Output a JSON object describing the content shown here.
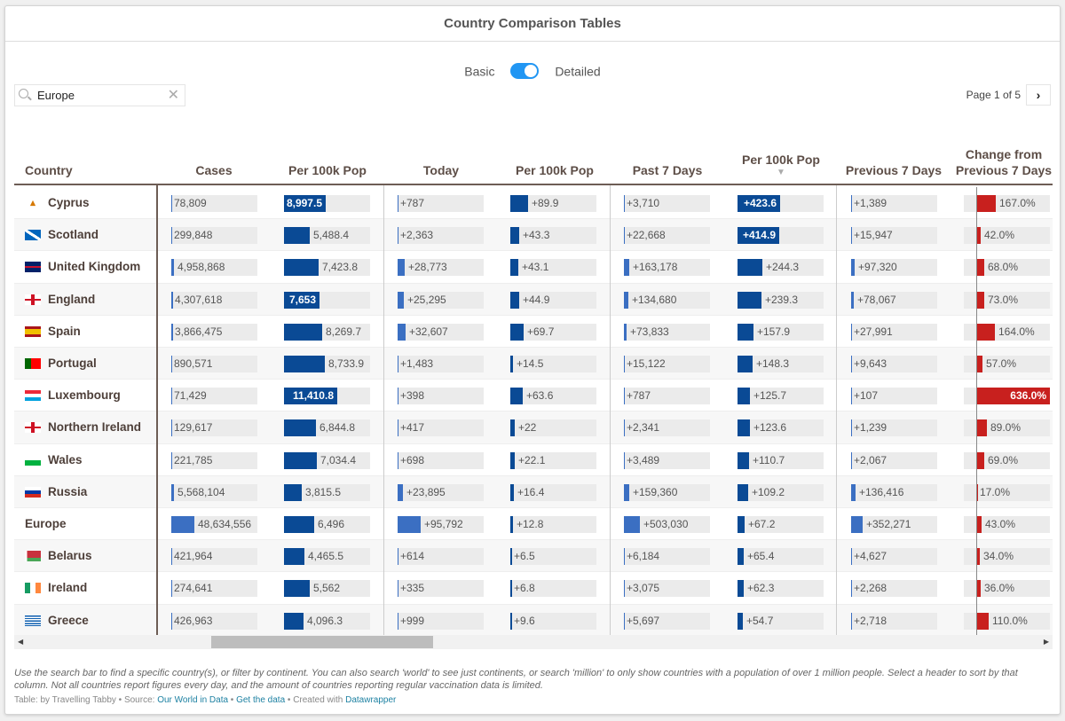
{
  "title": "Country Comparison Tables",
  "toggle": {
    "left": "Basic",
    "right": "Detailed",
    "state": "Detailed"
  },
  "search": {
    "value": "Europe",
    "icon": "search-icon",
    "clear_icon": "close-icon"
  },
  "pager": {
    "label": "Page 1 of 5",
    "next_icon": "chevron-right-icon"
  },
  "columns": [
    "Country",
    "Cases",
    "Per 100k Pop",
    "Today",
    "Per 100k Pop",
    "Past 7 Days",
    "Per 100k Pop",
    "Previous 7 Days",
    "Change from Previous 7 Days"
  ],
  "sort": {
    "column": 6,
    "direction": "descending",
    "icon": "▼"
  },
  "colors": {
    "bar_total": "#3b6fc2",
    "bar_per100k": "#0a4a95",
    "bar_change": "#c8201e",
    "bar_bg": "#ebebeb"
  },
  "rows": [
    {
      "country": "Cyprus",
      "flag": "cyprus",
      "cells": [
        "78,809",
        "8,997.5",
        "+787",
        "+89.9",
        "+3,710",
        "+423.6",
        "+1,389",
        "167.0%"
      ],
      "values": [
        78809,
        8997.5,
        787,
        89.9,
        3710,
        423.6,
        1389,
        167
      ]
    },
    {
      "country": "Scotland",
      "flag": "scotland",
      "cells": [
        "299,848",
        "5,488.4",
        "+2,363",
        "+43.3",
        "+22,668",
        "+414.9",
        "+15,947",
        "42.0%"
      ],
      "values": [
        299848,
        5488.4,
        2363,
        43.3,
        22668,
        414.9,
        15947,
        42
      ]
    },
    {
      "country": "United Kingdom",
      "flag": "uk",
      "cells": [
        "4,958,868",
        "7,423.8",
        "+28,773",
        "+43.1",
        "+163,178",
        "+244.3",
        "+97,320",
        "68.0%"
      ],
      "values": [
        4958868,
        7423.8,
        28773,
        43.1,
        163178,
        244.3,
        97320,
        68
      ]
    },
    {
      "country": "England",
      "flag": "england",
      "cells": [
        "4,307,618",
        "7,653",
        "+25,295",
        "+44.9",
        "+134,680",
        "+239.3",
        "+78,067",
        "73.0%"
      ],
      "values": [
        4307618,
        7653,
        25295,
        44.9,
        134680,
        239.3,
        78067,
        73
      ]
    },
    {
      "country": "Spain",
      "flag": "spain",
      "cells": [
        "3,866,475",
        "8,269.7",
        "+32,607",
        "+69.7",
        "+73,833",
        "+157.9",
        "+27,991",
        "164.0%"
      ],
      "values": [
        3866475,
        8269.7,
        32607,
        69.7,
        73833,
        157.9,
        27991,
        164
      ]
    },
    {
      "country": "Portugal",
      "flag": "portugal",
      "cells": [
        "890,571",
        "8,733.9",
        "+1,483",
        "+14.5",
        "+15,122",
        "+148.3",
        "+9,643",
        "57.0%"
      ],
      "values": [
        890571,
        8733.9,
        1483,
        14.5,
        15122,
        148.3,
        9643,
        57
      ]
    },
    {
      "country": "Luxembourg",
      "flag": "luxembourg",
      "cells": [
        "71,429",
        "11,410.8",
        "+398",
        "+63.6",
        "+787",
        "+125.7",
        "+107",
        "636.0%"
      ],
      "values": [
        71429,
        11410.8,
        398,
        63.6,
        787,
        125.7,
        107,
        636
      ]
    },
    {
      "country": "Northern Ireland",
      "flag": "nireland",
      "cells": [
        "129,617",
        "6,844.8",
        "+417",
        "+22",
        "+2,341",
        "+123.6",
        "+1,239",
        "89.0%"
      ],
      "values": [
        129617,
        6844.8,
        417,
        22,
        2341,
        123.6,
        1239,
        89
      ]
    },
    {
      "country": "Wales",
      "flag": "wales",
      "cells": [
        "221,785",
        "7,034.4",
        "+698",
        "+22.1",
        "+3,489",
        "+110.7",
        "+2,067",
        "69.0%"
      ],
      "values": [
        221785,
        7034.4,
        698,
        22.1,
        3489,
        110.7,
        2067,
        69
      ]
    },
    {
      "country": "Russia",
      "flag": "russia",
      "cells": [
        "5,568,104",
        "3,815.5",
        "+23,895",
        "+16.4",
        "+159,360",
        "+109.2",
        "+136,416",
        "17.0%"
      ],
      "values": [
        5568104,
        3815.5,
        23895,
        16.4,
        159360,
        109.2,
        136416,
        17
      ]
    },
    {
      "country": "Europe",
      "flag": "",
      "cells": [
        "48,634,556",
        "6,496",
        "+95,792",
        "+12.8",
        "+503,030",
        "+67.2",
        "+352,271",
        "43.0%"
      ],
      "values": [
        48634556,
        6496,
        95792,
        12.8,
        503030,
        67.2,
        352271,
        43
      ]
    },
    {
      "country": "Belarus",
      "flag": "belarus",
      "cells": [
        "421,964",
        "4,465.5",
        "+614",
        "+6.5",
        "+6,184",
        "+65.4",
        "+4,627",
        "34.0%"
      ],
      "values": [
        421964,
        4465.5,
        614,
        6.5,
        6184,
        65.4,
        4627,
        34
      ]
    },
    {
      "country": "Ireland",
      "flag": "ireland",
      "cells": [
        "274,641",
        "5,562",
        "+335",
        "+6.8",
        "+3,075",
        "+62.3",
        "+2,268",
        "36.0%"
      ],
      "values": [
        274641,
        5562,
        335,
        6.8,
        3075,
        62.3,
        2268,
        36
      ]
    },
    {
      "country": "Greece",
      "flag": "greece",
      "cells": [
        "426,963",
        "4,096.3",
        "+999",
        "+9.6",
        "+5,697",
        "+54.7",
        "+2,718",
        "110.0%"
      ],
      "values": [
        426963,
        4096.3,
        999,
        9.6,
        5697,
        54.7,
        2718,
        110
      ]
    }
  ],
  "notes": "Use the search bar to find a specific country(s), or filter by continent. You can also search 'world' to see just continents, or search 'million' to only show countries with a population of over 1 million people. Select a header to sort by that column. Not all countries report figures every day, and the amount of countries reporting regular vaccination data is limited.",
  "byline": {
    "prefix": "Table: by Travelling Tabby • Source: ",
    "source": "Our World in Data",
    "sep": " • ",
    "get_data": "Get the data",
    "created": " • Created with ",
    "tool": "Datawrapper"
  }
}
